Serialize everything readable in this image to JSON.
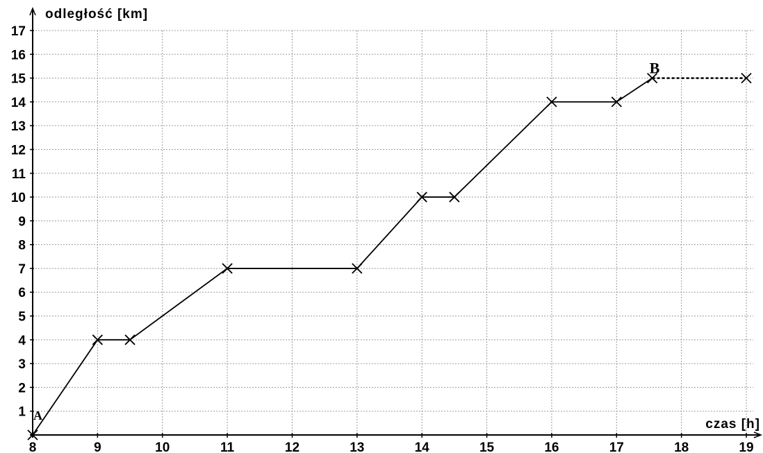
{
  "chart_data": {
    "type": "line",
    "xlabel": "czas [h]",
    "ylabel": "odległość [km]",
    "xlim": [
      8,
      19
    ],
    "ylim": [
      0,
      17
    ],
    "x_ticks": [
      8,
      9,
      10,
      11,
      12,
      13,
      14,
      15,
      16,
      17,
      18,
      19
    ],
    "y_ticks": [
      1,
      2,
      3,
      4,
      5,
      6,
      7,
      8,
      9,
      10,
      11,
      12,
      13,
      14,
      15,
      16,
      17
    ],
    "grid": true,
    "series": [
      {
        "x": [
          8,
          9,
          9.5,
          11,
          13,
          14,
          14.5,
          16,
          17,
          17.55
        ],
        "y": [
          0,
          4,
          4,
          7,
          7,
          10,
          10,
          14,
          14,
          15
        ]
      }
    ],
    "dashed_segment": {
      "x": [
        17.55,
        19
      ],
      "y": [
        15,
        15
      ]
    },
    "point_labels": [
      {
        "text": "A",
        "x": 8,
        "y": 0
      },
      {
        "text": "B",
        "x": 17.55,
        "y": 15
      }
    ],
    "end_marker": {
      "x": 19,
      "y": 15
    }
  }
}
